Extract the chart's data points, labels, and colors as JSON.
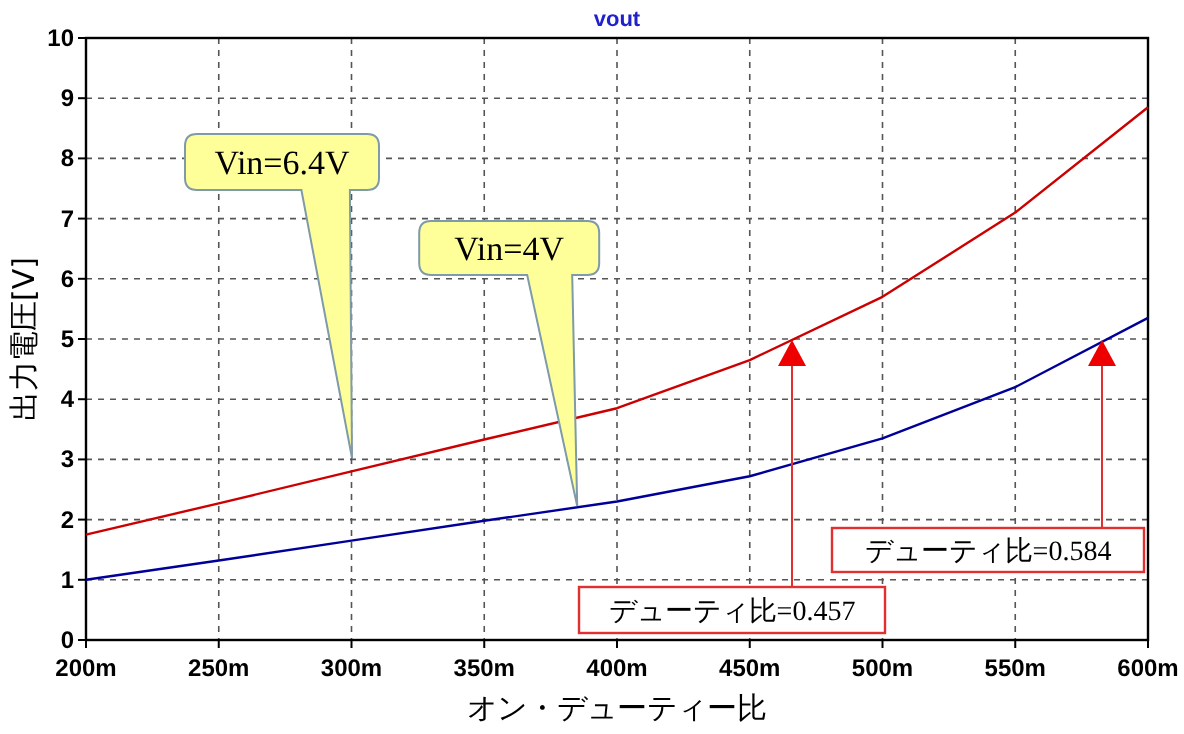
{
  "chart_data": {
    "type": "line",
    "title": "vout",
    "xlabel": "オン・デューティー比",
    "ylabel": "出力電圧[V]",
    "x": [
      200,
      250,
      300,
      350,
      400,
      450,
      500,
      550,
      600
    ],
    "series": [
      {
        "color": "#cc0000",
        "values": [
          1.75,
          2.27,
          2.8,
          3.33,
          3.85,
          4.65,
          5.7,
          7.1,
          8.85
        ]
      },
      {
        "color": "#000099",
        "values": [
          1.0,
          1.32,
          1.65,
          1.98,
          2.3,
          2.72,
          3.35,
          4.2,
          5.35
        ]
      }
    ],
    "xlim": [
      200,
      600
    ],
    "xticks": [
      {
        "value": 200,
        "label": "200m"
      },
      {
        "value": 250,
        "label": "250m"
      },
      {
        "value": 300,
        "label": "300m"
      },
      {
        "value": 350,
        "label": "350m"
      },
      {
        "value": 400,
        "label": "400m"
      },
      {
        "value": 450,
        "label": "450m"
      },
      {
        "value": 500,
        "label": "500m"
      },
      {
        "value": 550,
        "label": "550m"
      },
      {
        "value": 600,
        "label": "600m"
      }
    ],
    "ylim": [
      0,
      10
    ],
    "yticks": [
      0,
      1,
      2,
      3,
      4,
      5,
      6,
      7,
      8,
      9,
      10
    ],
    "grid": true,
    "line_style": "solid",
    "marker": "none",
    "annotations": [
      "Vin=6.4V",
      "Vin=4V",
      "デューティ比=0.457",
      "デューティ比=0.584"
    ]
  }
}
